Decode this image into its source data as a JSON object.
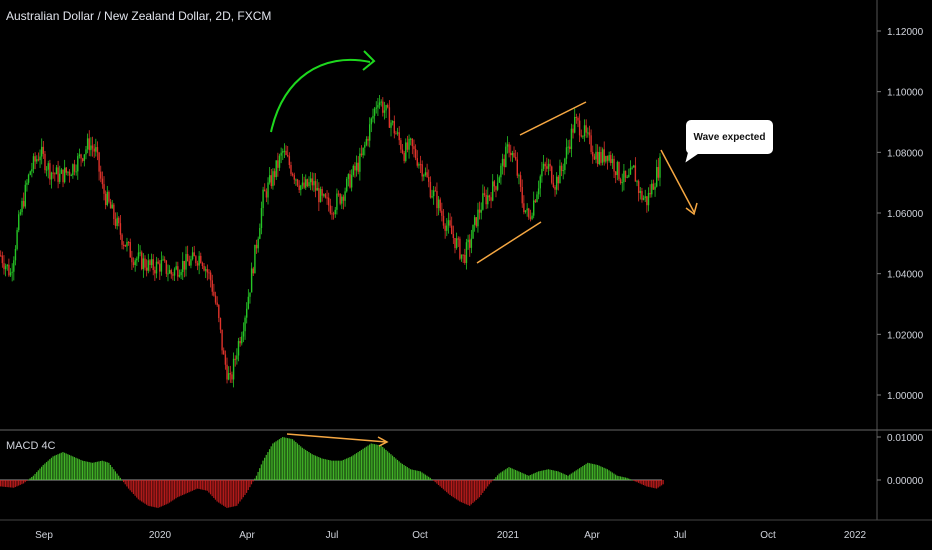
{
  "header": {
    "title": "Australian Dollar / New Zealand Dollar, 2D, FXCM"
  },
  "indicator": {
    "title": "MACD 4C"
  },
  "annotation": {
    "text": "Wave expected"
  },
  "colors": {
    "up": "#26c626",
    "down": "#e0332b",
    "hist_up": "#4cd12e",
    "hist_down": "#d62020",
    "bg": "#000000",
    "axis_text": "#d1d4dc",
    "orange": "#f5a742",
    "green_arrow": "#1ed81e"
  },
  "chart_data": [
    {
      "type": "candlestick",
      "title": "Australian Dollar / New Zealand Dollar, 2D, FXCM",
      "y_axis": {
        "ticks": [
          "1.12000",
          "1.10000",
          "1.08000",
          "1.06000",
          "1.04000",
          "1.02000",
          "1.00000"
        ],
        "range": [
          0.99,
          1.125
        ]
      },
      "x_axis": {
        "ticks": [
          "Sep",
          "2020",
          "Apr",
          "Jul",
          "Oct",
          "2021",
          "Apr",
          "Jul",
          "Oct",
          "2022"
        ]
      },
      "trend": [
        [
          0,
          1.046
        ],
        [
          6,
          1.04
        ],
        [
          12,
          1.06
        ],
        [
          18,
          1.074
        ],
        [
          24,
          1.08
        ],
        [
          30,
          1.074
        ],
        [
          36,
          1.072
        ],
        [
          42,
          1.074
        ],
        [
          48,
          1.078
        ],
        [
          54,
          1.083
        ],
        [
          58,
          1.08
        ],
        [
          62,
          1.068
        ],
        [
          68,
          1.06
        ],
        [
          74,
          1.052
        ],
        [
          80,
          1.046
        ],
        [
          86,
          1.044
        ],
        [
          92,
          1.042
        ],
        [
          98,
          1.043
        ],
        [
          104,
          1.04
        ],
        [
          110,
          1.043
        ],
        [
          116,
          1.044
        ],
        [
          122,
          1.046
        ],
        [
          128,
          1.038
        ],
        [
          132,
          1.028
        ],
        [
          136,
          1.012
        ],
        [
          140,
          1.004
        ],
        [
          144,
          1.015
        ],
        [
          148,
          1.024
        ],
        [
          152,
          1.036
        ],
        [
          156,
          1.05
        ],
        [
          160,
          1.065
        ],
        [
          166,
          1.072
        ],
        [
          172,
          1.08
        ],
        [
          178,
          1.074
        ],
        [
          184,
          1.068
        ],
        [
          190,
          1.07
        ],
        [
          196,
          1.064
        ],
        [
          202,
          1.062
        ],
        [
          208,
          1.066
        ],
        [
          214,
          1.072
        ],
        [
          220,
          1.078
        ],
        [
          226,
          1.09
        ],
        [
          230,
          1.098
        ],
        [
          234,
          1.094
        ],
        [
          238,
          1.09
        ],
        [
          242,
          1.085
        ],
        [
          246,
          1.08
        ],
        [
          250,
          1.082
        ],
        [
          254,
          1.078
        ],
        [
          258,
          1.074
        ],
        [
          262,
          1.068
        ],
        [
          266,
          1.064
        ],
        [
          270,
          1.058
        ],
        [
          274,
          1.054
        ],
        [
          278,
          1.05
        ],
        [
          282,
          1.045
        ],
        [
          286,
          1.05
        ],
        [
          290,
          1.058
        ],
        [
          294,
          1.064
        ],
        [
          298,
          1.066
        ],
        [
          302,
          1.07
        ],
        [
          306,
          1.076
        ],
        [
          310,
          1.082
        ],
        [
          314,
          1.076
        ],
        [
          318,
          1.064
        ],
        [
          322,
          1.058
        ],
        [
          326,
          1.066
        ],
        [
          330,
          1.074
        ],
        [
          334,
          1.075
        ],
        [
          338,
          1.07
        ],
        [
          342,
          1.074
        ],
        [
          346,
          1.082
        ],
        [
          350,
          1.09
        ],
        [
          354,
          1.088
        ],
        [
          358,
          1.084
        ],
        [
          362,
          1.08
        ],
        [
          366,
          1.078
        ],
        [
          370,
          1.08
        ],
        [
          374,
          1.076
        ],
        [
          378,
          1.072
        ],
        [
          382,
          1.07
        ],
        [
          386,
          1.074
        ],
        [
          390,
          1.066
        ],
        [
          394,
          1.064
        ],
        [
          398,
          1.07
        ],
        [
          402,
          1.076
        ]
      ],
      "annotations": {
        "triangle_lines": [
          {
            "from": [
              1.043,
              "Dec 2020"
            ],
            "to": [
              1.056,
              "Feb 2021"
            ]
          },
          {
            "from": [
              1.084,
              "Jan 2021"
            ],
            "to": [
              1.095,
              "Mar 2021"
            ]
          }
        ],
        "callout": "Wave expected"
      }
    },
    {
      "type": "histogram",
      "title": "MACD 4C",
      "y_axis": {
        "ticks": [
          "0.01000",
          "0.00000"
        ],
        "range": [
          -0.0075,
          0.0115
        ]
      },
      "histogram": [
        [
          0,
          -0.0015
        ],
        [
          8,
          -0.0018
        ],
        [
          14,
          -0.0008
        ],
        [
          20,
          0.001
        ],
        [
          26,
          0.0035
        ],
        [
          32,
          0.0055
        ],
        [
          38,
          0.0065
        ],
        [
          44,
          0.0055
        ],
        [
          50,
          0.0045
        ],
        [
          56,
          0.004
        ],
        [
          62,
          0.0045
        ],
        [
          66,
          0.004
        ],
        [
          72,
          0.001
        ],
        [
          78,
          -0.002
        ],
        [
          84,
          -0.0045
        ],
        [
          90,
          -0.006
        ],
        [
          96,
          -0.0065
        ],
        [
          102,
          -0.0055
        ],
        [
          108,
          -0.004
        ],
        [
          114,
          -0.003
        ],
        [
          120,
          -0.002
        ],
        [
          126,
          -0.0025
        ],
        [
          132,
          -0.005
        ],
        [
          138,
          -0.0065
        ],
        [
          144,
          -0.006
        ],
        [
          150,
          -0.003
        ],
        [
          156,
          0.001
        ],
        [
          160,
          0.0045
        ],
        [
          166,
          0.0085
        ],
        [
          172,
          0.01
        ],
        [
          178,
          0.0095
        ],
        [
          184,
          0.0075
        ],
        [
          190,
          0.006
        ],
        [
          196,
          0.005
        ],
        [
          202,
          0.0045
        ],
        [
          208,
          0.0045
        ],
        [
          214,
          0.0055
        ],
        [
          220,
          0.007
        ],
        [
          226,
          0.0085
        ],
        [
          232,
          0.008
        ],
        [
          238,
          0.006
        ],
        [
          244,
          0.004
        ],
        [
          250,
          0.0025
        ],
        [
          256,
          0.002
        ],
        [
          262,
          0.0005
        ],
        [
          268,
          -0.0015
        ],
        [
          274,
          -0.0035
        ],
        [
          280,
          -0.005
        ],
        [
          286,
          -0.006
        ],
        [
          292,
          -0.004
        ],
        [
          298,
          -0.001
        ],
        [
          304,
          0.0015
        ],
        [
          310,
          0.003
        ],
        [
          316,
          0.002
        ],
        [
          322,
          0.001
        ],
        [
          328,
          0.002
        ],
        [
          334,
          0.0025
        ],
        [
          340,
          0.002
        ],
        [
          346,
          0.001
        ],
        [
          352,
          0.0025
        ],
        [
          358,
          0.004
        ],
        [
          364,
          0.0035
        ],
        [
          370,
          0.0025
        ],
        [
          376,
          0.001
        ],
        [
          382,
          0.0005
        ],
        [
          388,
          -0.0005
        ],
        [
          394,
          -0.0015
        ],
        [
          400,
          -0.002
        ],
        [
          404,
          -0.001
        ]
      ]
    }
  ]
}
